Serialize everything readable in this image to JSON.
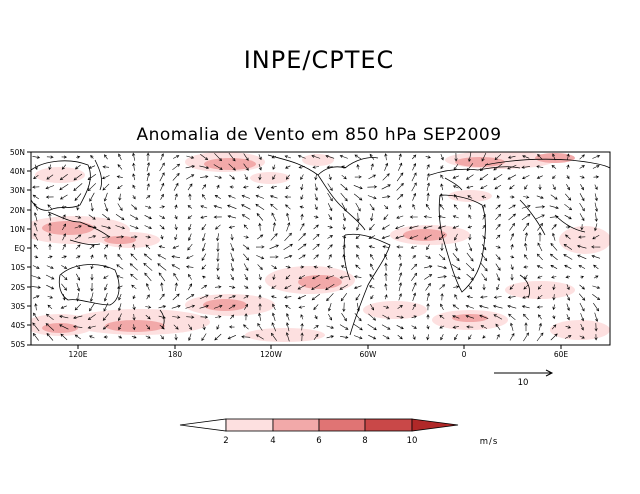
{
  "header": {
    "institution": "INPE/CPTEC",
    "title": "Anomalia de Vento em 850 hPa SEP2009"
  },
  "map": {
    "lat_labels": [
      "50N",
      "40N",
      "30N",
      "20N",
      "10N",
      "EQ",
      "10S",
      "20S",
      "30S",
      "40S",
      "50S"
    ],
    "lon_labels": [
      "120E",
      "180",
      "120W",
      "60W",
      "0",
      "60E"
    ]
  },
  "reference_vector": {
    "label": "10",
    "magnitude": 10
  },
  "colorbar": {
    "ticks": [
      "2",
      "4",
      "6",
      "8",
      "10"
    ],
    "units": "m/s",
    "colors": [
      "#ffffff",
      "#fde0e0",
      "#f2a9a9",
      "#e07474",
      "#c94848",
      "#b02828"
    ]
  }
}
